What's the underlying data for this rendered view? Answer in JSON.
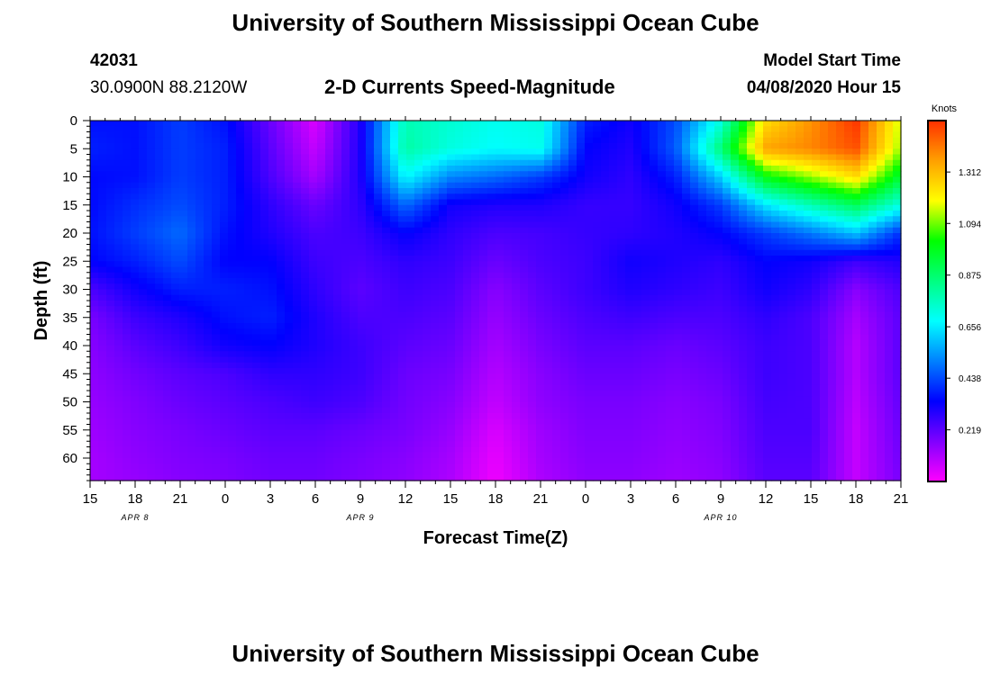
{
  "page": {
    "title_top": "University of Southern Mississippi Ocean Cube",
    "title_bottom": "University of Southern Mississippi Ocean Cube"
  },
  "station": {
    "id": "42031",
    "coords": "30.0900N 88.2120W"
  },
  "model": {
    "label": "Model Start Time",
    "start": "04/08/2020 Hour 15"
  },
  "chart_data": {
    "type": "heatmap",
    "title": "2-D Currents Speed-Magnitude",
    "xlabel": "Forecast Time(Z)",
    "ylabel": "Depth (ft)",
    "x_tick_labels": [
      "15",
      "18",
      "21",
      "0",
      "3",
      "6",
      "9",
      "12",
      "15",
      "18",
      "21",
      "0",
      "3",
      "6",
      "9",
      "12",
      "15",
      "18",
      "21"
    ],
    "date_labels": [
      {
        "text": "APR 8",
        "tick": "18"
      },
      {
        "text": "APR 9",
        "tick": "9"
      },
      {
        "text": "APR 10",
        "tick": "9"
      }
    ],
    "x_range_hours": [
      0,
      54
    ],
    "y_ticks": [
      0,
      5,
      10,
      15,
      20,
      25,
      30,
      35,
      40,
      45,
      50,
      55,
      60
    ],
    "ylim": [
      0,
      64
    ],
    "y_reversed": true,
    "colorbar": {
      "unit": "Knots",
      "ticks": [
        "1.312",
        "1.094",
        "0.875",
        "0.656",
        "0.438",
        "0.219"
      ],
      "tick_values": [
        1.312,
        1.094,
        0.875,
        0.656,
        0.438,
        0.219
      ],
      "range": [
        0,
        1.53
      ],
      "colors": [
        "#ff00ff",
        "#8000ff",
        "#0000ff",
        "#0080ff",
        "#00ffff",
        "#00ff80",
        "#00ff00",
        "#ffff00",
        "#ffa000",
        "#ff3000"
      ]
    },
    "depths": [
      0,
      5,
      10,
      15,
      20,
      25,
      30,
      35,
      40,
      45,
      50,
      55,
      60,
      64
    ],
    "times": [
      0,
      3,
      6,
      9,
      12,
      15,
      18,
      21,
      24,
      27,
      30,
      33,
      36,
      39,
      42,
      45,
      48,
      51,
      54
    ],
    "values": [
      [
        0.36,
        0.36,
        0.42,
        0.36,
        0.2,
        0.05,
        0.3,
        0.78,
        0.74,
        0.7,
        0.72,
        0.38,
        0.32,
        0.44,
        0.72,
        1.25,
        1.38,
        1.52,
        1.15
      ],
      [
        0.38,
        0.36,
        0.42,
        0.38,
        0.22,
        0.08,
        0.3,
        0.8,
        0.72,
        0.68,
        0.7,
        0.34,
        0.3,
        0.46,
        0.86,
        1.35,
        1.4,
        1.48,
        1.12
      ],
      [
        0.35,
        0.36,
        0.42,
        0.38,
        0.24,
        0.12,
        0.3,
        0.68,
        0.52,
        0.48,
        0.42,
        0.32,
        0.28,
        0.38,
        0.62,
        1.0,
        1.12,
        1.25,
        0.95
      ],
      [
        0.35,
        0.4,
        0.44,
        0.38,
        0.28,
        0.2,
        0.28,
        0.48,
        0.32,
        0.3,
        0.3,
        0.27,
        0.27,
        0.32,
        0.42,
        0.65,
        0.78,
        0.9,
        0.72
      ],
      [
        0.36,
        0.42,
        0.48,
        0.36,
        0.3,
        0.24,
        0.26,
        0.34,
        0.28,
        0.24,
        0.25,
        0.27,
        0.28,
        0.3,
        0.34,
        0.42,
        0.5,
        0.6,
        0.4
      ],
      [
        0.34,
        0.38,
        0.44,
        0.34,
        0.34,
        0.26,
        0.24,
        0.28,
        0.26,
        0.2,
        0.24,
        0.26,
        0.32,
        0.3,
        0.28,
        0.34,
        0.32,
        0.26,
        0.3
      ],
      [
        0.24,
        0.32,
        0.38,
        0.38,
        0.36,
        0.28,
        0.22,
        0.26,
        0.24,
        0.16,
        0.22,
        0.26,
        0.3,
        0.28,
        0.26,
        0.32,
        0.28,
        0.16,
        0.24
      ],
      [
        0.18,
        0.26,
        0.3,
        0.36,
        0.38,
        0.3,
        0.24,
        0.24,
        0.22,
        0.14,
        0.2,
        0.24,
        0.26,
        0.24,
        0.24,
        0.28,
        0.24,
        0.12,
        0.22
      ],
      [
        0.16,
        0.22,
        0.26,
        0.32,
        0.34,
        0.3,
        0.26,
        0.22,
        0.2,
        0.12,
        0.18,
        0.22,
        0.22,
        0.2,
        0.22,
        0.26,
        0.24,
        0.1,
        0.22
      ],
      [
        0.15,
        0.19,
        0.22,
        0.24,
        0.28,
        0.28,
        0.26,
        0.2,
        0.18,
        0.1,
        0.16,
        0.2,
        0.2,
        0.18,
        0.2,
        0.26,
        0.24,
        0.1,
        0.22
      ],
      [
        0.14,
        0.17,
        0.2,
        0.22,
        0.24,
        0.26,
        0.24,
        0.19,
        0.16,
        0.08,
        0.15,
        0.18,
        0.18,
        0.16,
        0.18,
        0.25,
        0.24,
        0.09,
        0.21
      ],
      [
        0.13,
        0.16,
        0.18,
        0.2,
        0.22,
        0.22,
        0.2,
        0.18,
        0.14,
        0.05,
        0.13,
        0.17,
        0.17,
        0.15,
        0.17,
        0.24,
        0.24,
        0.08,
        0.2
      ],
      [
        0.12,
        0.15,
        0.17,
        0.18,
        0.2,
        0.2,
        0.18,
        0.16,
        0.12,
        0.03,
        0.12,
        0.16,
        0.16,
        0.14,
        0.16,
        0.23,
        0.23,
        0.08,
        0.19
      ],
      [
        0.12,
        0.14,
        0.16,
        0.17,
        0.19,
        0.19,
        0.17,
        0.15,
        0.11,
        0.02,
        0.11,
        0.15,
        0.15,
        0.13,
        0.15,
        0.22,
        0.22,
        0.08,
        0.18
      ]
    ]
  }
}
